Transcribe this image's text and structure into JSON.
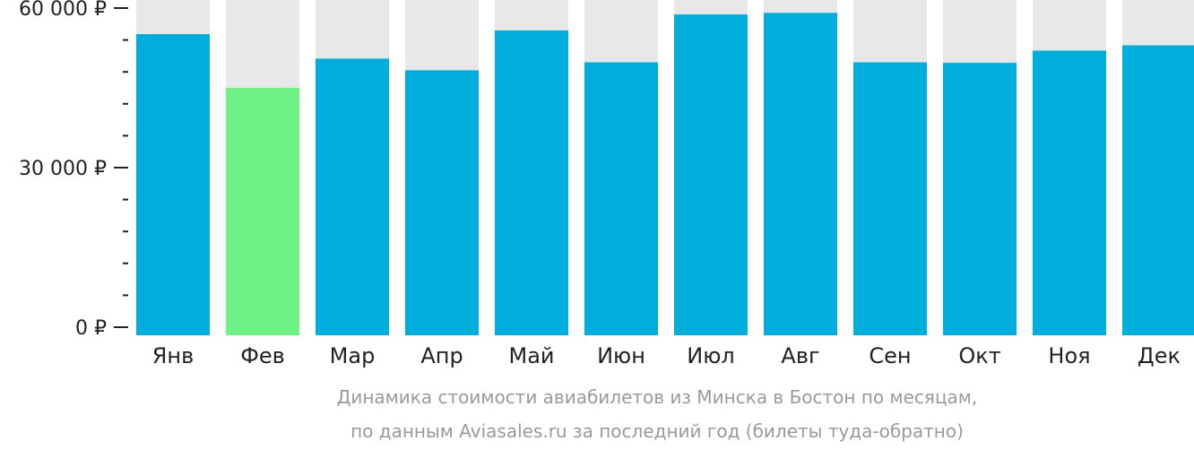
{
  "chart_data": {
    "type": "bar",
    "categories": [
      "Янв",
      "Фев",
      "Мар",
      "Апр",
      "Май",
      "Июн",
      "Июл",
      "Авг",
      "Сен",
      "Окт",
      "Ноя",
      "Дек"
    ],
    "values": [
      55100,
      45000,
      50500,
      48300,
      55800,
      49800,
      58800,
      59100,
      49800,
      49700,
      52000,
      53000
    ],
    "highlight_index": 1,
    "ylim": [
      0,
      60000
    ],
    "y_ticks": [
      {
        "value": 0,
        "label": "0 ₽"
      },
      {
        "value": 30000,
        "label": "30 000 ₽"
      },
      {
        "value": 60000,
        "label": "60 000 ₽"
      }
    ],
    "minor_tick_step": 6000,
    "colors": {
      "bar": "#00AEDC",
      "highlight": "#6EF286",
      "background_column": "#E8E8E8",
      "axis": "#222222"
    },
    "caption": [
      "Динамика стоимости авиабилетов из Минска в Бостон по месяцам,",
      "по данным Aviasales.ru за последний год (билеты туда-обратно)"
    ]
  }
}
